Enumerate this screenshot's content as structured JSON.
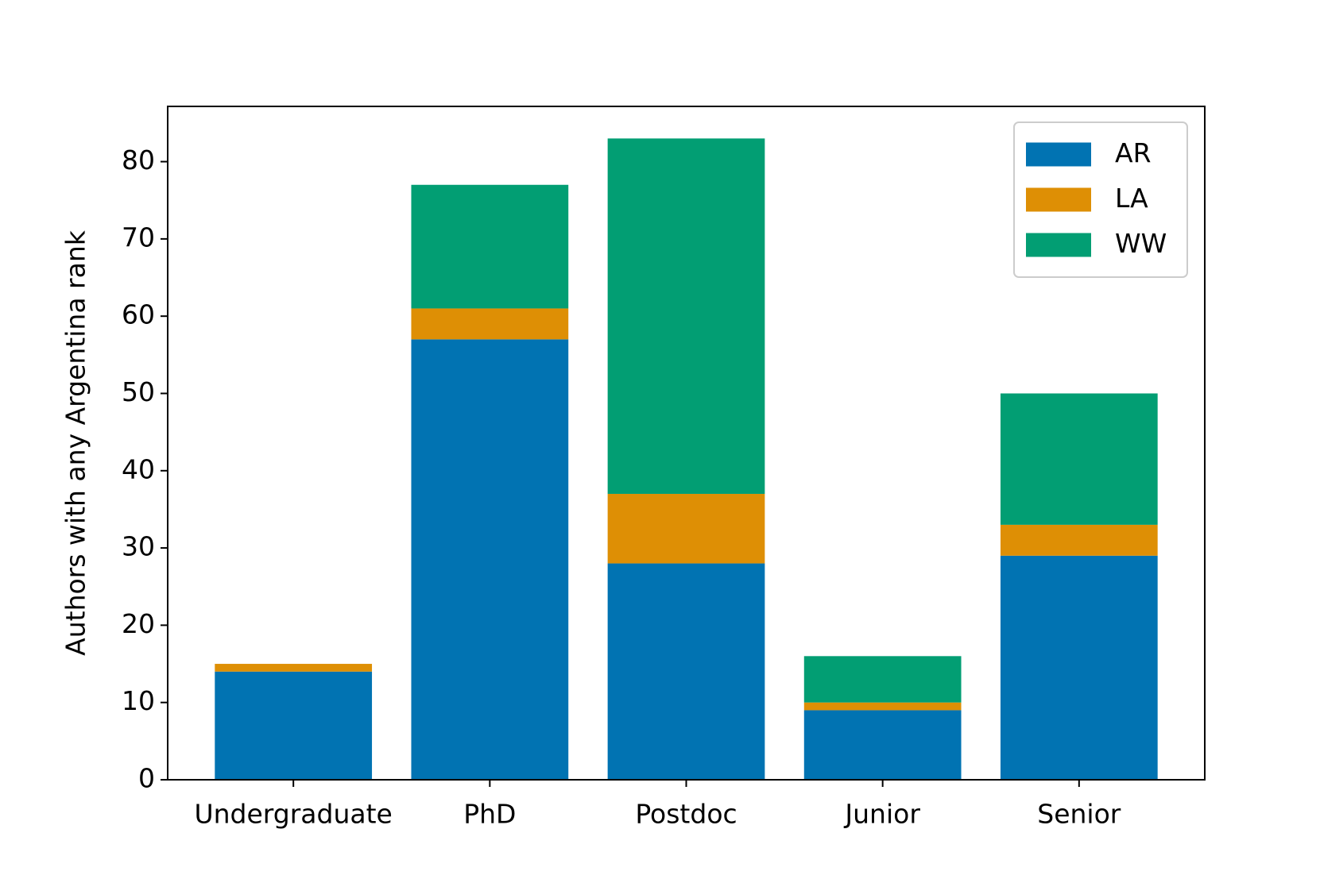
{
  "chart_data": {
    "type": "stacked_bar",
    "y_label": "Authors with any Argentina rank",
    "categories": [
      "Undergraduate",
      "PhD",
      "Postdoc",
      "Junior",
      "Senior"
    ],
    "series": [
      {
        "name": "AR",
        "color": "#0173b2",
        "values": [
          14,
          57,
          28,
          9,
          29
        ]
      },
      {
        "name": "LA",
        "color": "#de8f05",
        "values": [
          1,
          4,
          9,
          1,
          4
        ]
      },
      {
        "name": "WW",
        "color": "#029e73",
        "values": [
          0,
          16,
          46,
          6,
          17
        ]
      }
    ],
    "ylim": [
      0,
      87.15
    ],
    "yticks": [
      0,
      10,
      20,
      30,
      40,
      50,
      60,
      70,
      80
    ],
    "legend": "upper right",
    "grid": false
  }
}
